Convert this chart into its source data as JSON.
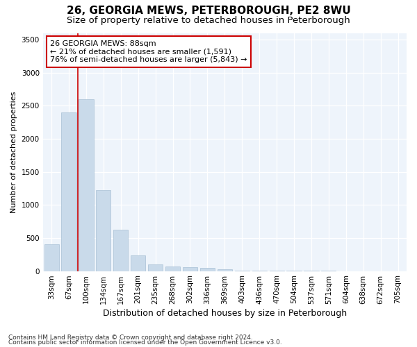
{
  "title": "26, GEORGIA MEWS, PETERBOROUGH, PE2 8WU",
  "subtitle": "Size of property relative to detached houses in Peterborough",
  "xlabel": "Distribution of detached houses by size in Peterborough",
  "ylabel": "Number of detached properties",
  "categories": [
    "33sqm",
    "67sqm",
    "100sqm",
    "134sqm",
    "167sqm",
    "201sqm",
    "235sqm",
    "268sqm",
    "302sqm",
    "336sqm",
    "369sqm",
    "403sqm",
    "436sqm",
    "470sqm",
    "504sqm",
    "537sqm",
    "571sqm",
    "604sqm",
    "638sqm",
    "672sqm",
    "705sqm"
  ],
  "values": [
    400,
    2400,
    2600,
    1220,
    620,
    240,
    100,
    65,
    55,
    50,
    30,
    10,
    5,
    3,
    2,
    1,
    1,
    0,
    0,
    0,
    0
  ],
  "bar_color": "#c9daea",
  "bar_edge_color": "#a8c0d4",
  "grid_color": "#dce8f4",
  "background_color": "#eef4fb",
  "annotation_line1": "26 GEORGIA MEWS: 88sqm",
  "annotation_line2": "← 21% of detached houses are smaller (1,591)",
  "annotation_line3": "76% of semi-detached houses are larger (5,843) →",
  "red_line_index": 1.5,
  "ylim": [
    0,
    3600
  ],
  "yticks": [
    0,
    500,
    1000,
    1500,
    2000,
    2500,
    3000,
    3500
  ],
  "footer1": "Contains HM Land Registry data © Crown copyright and database right 2024.",
  "footer2": "Contains public sector information licensed under the Open Government Licence v3.0.",
  "title_fontsize": 11,
  "subtitle_fontsize": 9.5,
  "xlabel_fontsize": 9,
  "ylabel_fontsize": 8,
  "tick_fontsize": 7.5,
  "annotation_fontsize": 8,
  "footer_fontsize": 6.5
}
